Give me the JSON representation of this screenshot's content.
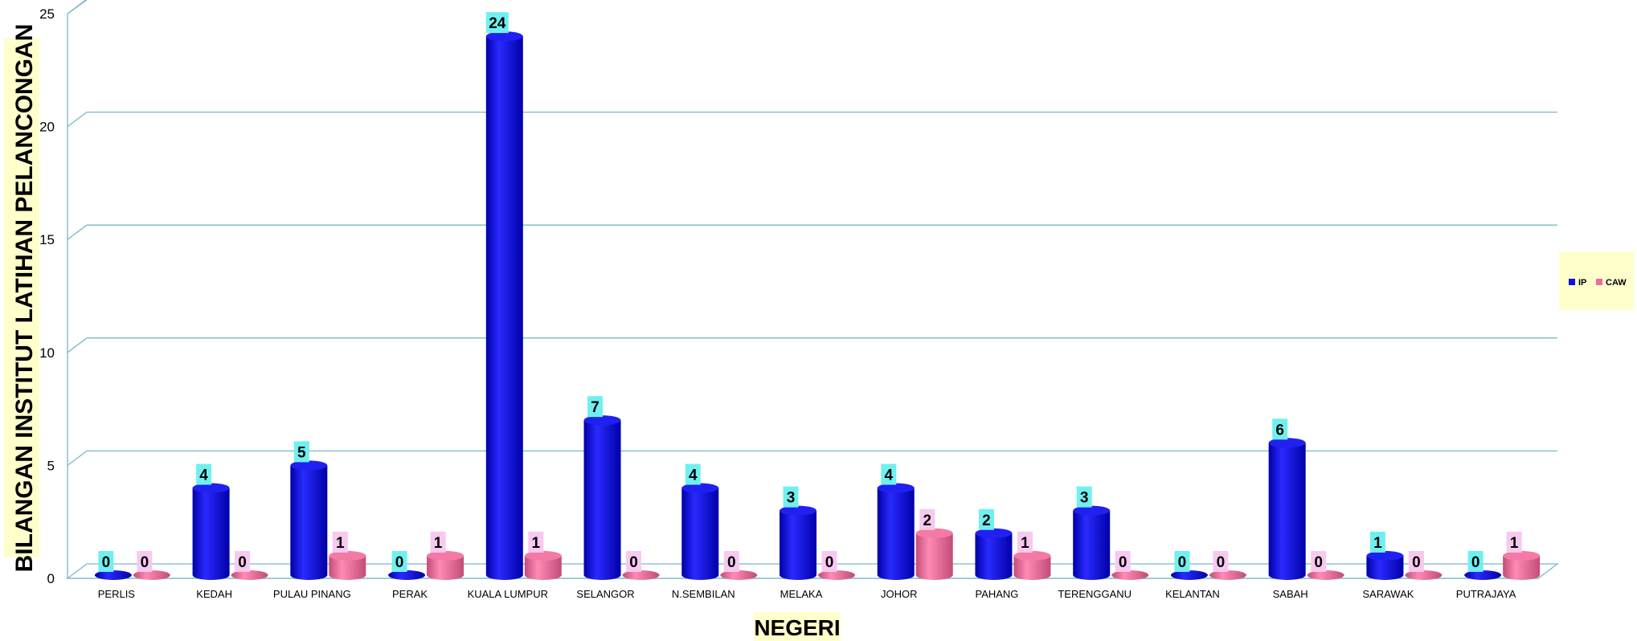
{
  "chart_data": {
    "type": "bar",
    "categories": [
      "PERLIS",
      "KEDAH",
      "PULAU PINANG",
      "PERAK",
      "KUALA LUMPUR",
      "SELANGOR",
      "N.SEMBILAN",
      "MELAKA",
      "JOHOR",
      "PAHANG",
      "TERENGGANU",
      "KELANTAN",
      "SABAH",
      "SARAWAK",
      "PUTRAJAYA"
    ],
    "series": [
      {
        "name": "IP",
        "values": [
          0,
          4,
          5,
          0,
          24,
          7,
          4,
          3,
          4,
          2,
          3,
          0,
          6,
          1,
          0
        ],
        "color": "#1010e0",
        "label_bg": "#6ff0f0"
      },
      {
        "name": "CAW",
        "values": [
          0,
          0,
          1,
          1,
          1,
          0,
          0,
          0,
          2,
          1,
          0,
          0,
          0,
          0,
          1
        ],
        "color": "#f06a9a",
        "label_bg": "#f7c8f0"
      }
    ],
    "title": "",
    "xlabel": "NEGERI",
    "ylabel": "BILANGAN INSTITUT LATIHAN PELANCONGAN",
    "ylim": [
      0,
      25
    ],
    "yticks": [
      0,
      5,
      10,
      15,
      20,
      25
    ],
    "grid": true,
    "legend_position": "right",
    "axis_title_bg": "#ffffcc",
    "grid_color": "#7ab7c9"
  }
}
